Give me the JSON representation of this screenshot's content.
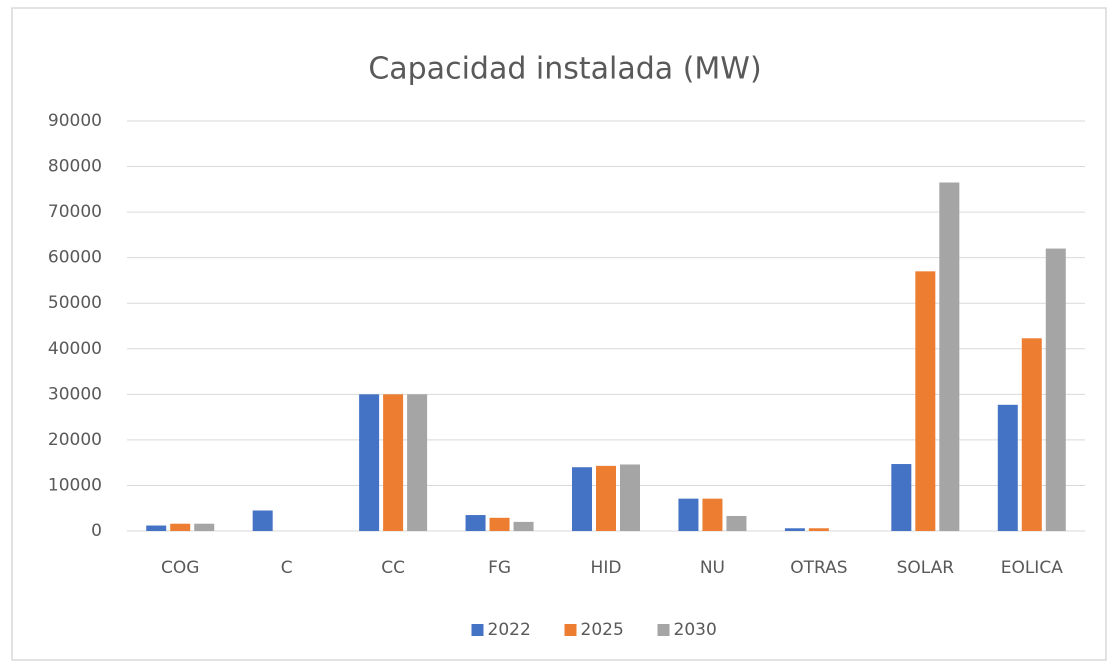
{
  "chart_data": {
    "type": "bar",
    "title": "Capacidad instalada (MW)",
    "categories": [
      "COG",
      "C",
      "CC",
      "FG",
      "HID",
      "NU",
      "OTRAS",
      "SOLAR",
      "EOLICA"
    ],
    "series": [
      {
        "name": "2022",
        "color": "#4472c4",
        "values": [
          1200,
          4500,
          30000,
          3500,
          14000,
          7100,
          600,
          14700,
          27700
        ]
      },
      {
        "name": "2025",
        "color": "#ed7d31",
        "values": [
          1600,
          0,
          30000,
          2900,
          14300,
          7100,
          600,
          57000,
          42300
        ]
      },
      {
        "name": "2030",
        "color": "#a5a5a5",
        "values": [
          1600,
          0,
          30000,
          2000,
          14600,
          3300,
          0,
          76500,
          62000
        ]
      }
    ],
    "ylim": [
      0,
      90000
    ],
    "yticks": [
      0,
      10000,
      20000,
      30000,
      40000,
      50000,
      60000,
      70000,
      80000,
      90000
    ],
    "grid": true,
    "legend": "bottom"
  }
}
